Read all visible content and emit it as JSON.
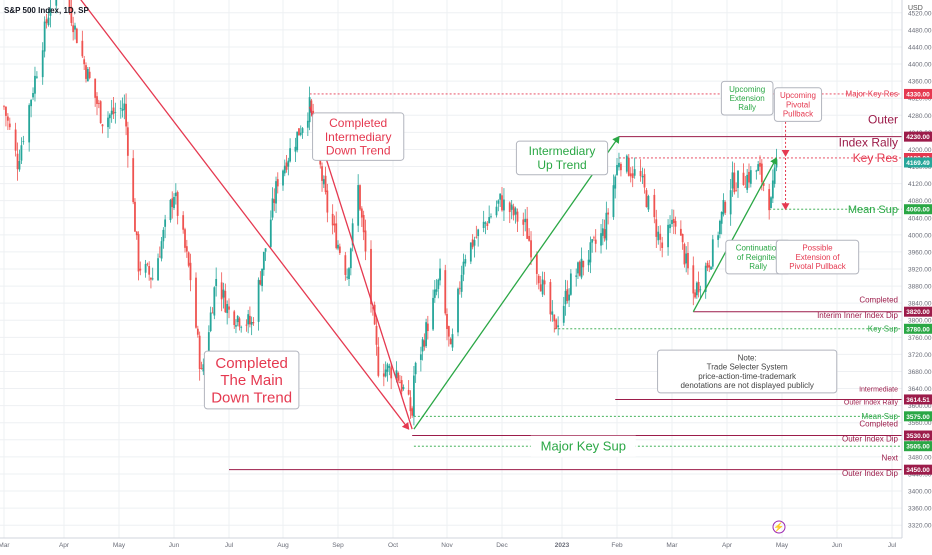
{
  "header": {
    "symbol_title": "S&P 500 Index, 1D, SP"
  },
  "currency_label": "USD",
  "logo_glyph": "⚡",
  "colors": {
    "red": "#e53950",
    "green": "#2aa745",
    "crimson": "#9c1c4a",
    "bull": "#26a69a",
    "bear": "#ef5350",
    "text_red": "#e53950",
    "text_green": "#2aa745",
    "grid": "#eef0f3"
  },
  "chart_data": {
    "type": "candlestick",
    "y_range": [
      3290,
      4550
    ],
    "y_ticks": [
      3320,
      3360,
      3400,
      3440,
      3480,
      3520,
      3560,
      3600,
      3640,
      3680,
      3720,
      3760,
      3800,
      3840,
      3880,
      3920,
      3960,
      4000,
      4040,
      4080,
      4120,
      4160,
      4200,
      4240,
      4280,
      4320,
      4360,
      4400,
      4440,
      4480,
      4520
    ],
    "x_ticks": [
      {
        "label": "Mar",
        "date": "2022-03-01"
      },
      {
        "label": "Apr",
        "date": "2022-04-01"
      },
      {
        "label": "May",
        "date": "2022-05-01"
      },
      {
        "label": "Jun",
        "date": "2022-06-01"
      },
      {
        "label": "Jul",
        "date": "2022-07-01"
      },
      {
        "label": "Aug",
        "date": "2022-08-01"
      },
      {
        "label": "Sep",
        "date": "2022-09-01"
      },
      {
        "label": "Oct",
        "date": "2022-10-01"
      },
      {
        "label": "Nov",
        "date": "2022-11-01"
      },
      {
        "label": "Dec",
        "date": "2022-12-01"
      },
      {
        "label": "2023",
        "date": "2023-01-01"
      },
      {
        "label": "Feb",
        "date": "2023-02-01"
      },
      {
        "label": "Mar",
        "date": "2023-03-01"
      },
      {
        "label": "Apr",
        "date": "2023-04-01"
      },
      {
        "label": "May",
        "date": "2023-05-01"
      },
      {
        "label": "Jun",
        "date": "2023-06-01"
      },
      {
        "label": "Jul",
        "date": "2023-07-01"
      }
    ],
    "price_anchors": [
      [
        "2022-03-01",
        4300
      ],
      [
        "2022-03-08",
        4170
      ],
      [
        "2022-03-29",
        4630
      ],
      [
        "2022-04-12",
        4400
      ],
      [
        "2022-04-22",
        4270
      ],
      [
        "2022-05-04",
        4300
      ],
      [
        "2022-05-12",
        3930
      ],
      [
        "2022-05-20",
        3900
      ],
      [
        "2022-06-01",
        4100
      ],
      [
        "2022-06-10",
        3900
      ],
      [
        "2022-06-16",
        3670
      ],
      [
        "2022-06-24",
        3900
      ],
      [
        "2022-07-01",
        3820
      ],
      [
        "2022-07-14",
        3790
      ],
      [
        "2022-07-29",
        4130
      ],
      [
        "2022-08-16",
        4300
      ],
      [
        "2022-08-26",
        4060
      ],
      [
        "2022-09-06",
        3910
      ],
      [
        "2022-09-12",
        4110
      ],
      [
        "2022-09-23",
        3690
      ],
      [
        "2022-10-03",
        3680
      ],
      [
        "2022-10-12",
        3580
      ],
      [
        "2022-10-13",
        3670
      ],
      [
        "2022-10-28",
        3900
      ],
      [
        "2022-11-03",
        3720
      ],
      [
        "2022-11-10",
        3950
      ],
      [
        "2022-11-30",
        4080
      ],
      [
        "2022-12-13",
        4020
      ],
      [
        "2022-12-28",
        3780
      ],
      [
        "2023-01-06",
        3890
      ],
      [
        "2023-01-25",
        4010
      ],
      [
        "2023-02-02",
        4180
      ],
      [
        "2023-02-13",
        4130
      ],
      [
        "2023-02-24",
        3970
      ],
      [
        "2023-03-03",
        4040
      ],
      [
        "2023-03-13",
        3860
      ],
      [
        "2023-03-23",
        3950
      ],
      [
        "2023-04-03",
        4120
      ],
      [
        "2023-04-14",
        4140
      ],
      [
        "2023-04-18",
        4155
      ],
      [
        "2023-04-25",
        4070
      ],
      [
        "2023-04-28",
        4169
      ]
    ],
    "last_price": 4169.49,
    "price_labels": [
      {
        "value": 4330.0,
        "text": "4330.00",
        "color": "red"
      },
      {
        "value": 4230.0,
        "text": "4230.00",
        "color": "crimson"
      },
      {
        "value": 4180.0,
        "text": "4180.00",
        "color": "red"
      },
      {
        "value": 4169.49,
        "text": "4169.49",
        "color": "bull"
      },
      {
        "value": 4060.0,
        "text": "4060.00",
        "color": "green"
      },
      {
        "value": 3820.0,
        "text": "3820.00",
        "color": "crimson"
      },
      {
        "value": 3780.0,
        "text": "3780.00",
        "color": "green"
      },
      {
        "value": 3614.51,
        "text": "3614.51",
        "color": "crimson"
      },
      {
        "value": 3575.0,
        "text": "3575.00",
        "color": "green"
      },
      {
        "value": 3530.0,
        "text": "3530.00",
        "color": "crimson"
      },
      {
        "value": 3505.0,
        "text": "3505.00",
        "color": "green"
      },
      {
        "value": 3450.0,
        "text": "3450.00",
        "color": "crimson"
      }
    ],
    "levels": [
      {
        "name": "Major Key Res",
        "value": 4330,
        "style": "dotted",
        "color": "red",
        "from": "2022-08-16",
        "label": [
          "Major Key Res"
        ],
        "label_size": 8
      },
      {
        "name": "Outer Index Rally",
        "value": 4230,
        "style": "solid",
        "color": "crimson",
        "from": "2023-02-02",
        "label": [
          "Outer",
          "Index Rally"
        ],
        "label_size": 12
      },
      {
        "name": "Key Res",
        "value": 4180,
        "style": "dotted",
        "color": "red",
        "from": "2023-02-02",
        "label": [
          "Key Res"
        ],
        "label_size": 12
      },
      {
        "name": "Mean Sup",
        "value": 4060,
        "style": "dotted",
        "color": "green",
        "from": "2023-04-24",
        "label": [
          "Mean Sup"
        ],
        "label_size": 11
      },
      {
        "name": "Completed Interim Inner Index Dip",
        "value": 3820,
        "style": "solid",
        "color": "crimson",
        "from": "2023-03-13",
        "label": [
          "Completed",
          "Interim Inner Index Dip"
        ],
        "label_size": 8
      },
      {
        "name": "Key Sup",
        "value": 3780,
        "style": "dotted",
        "color": "green",
        "from": "2022-12-28",
        "label": [
          "Key Sup"
        ],
        "label_size": 8
      },
      {
        "name": "Intermediate Outer Index Rally",
        "value": 3614.51,
        "style": "solid",
        "color": "crimson",
        "from": "2023-01-31",
        "label": [
          "Intermediate",
          "Outer Index Rally"
        ],
        "label_size": 7
      },
      {
        "name": "Mean Sup 3575",
        "value": 3575,
        "style": "dotted",
        "color": "green",
        "from": "2022-10-13",
        "label": [
          "Mean Sup"
        ],
        "label_size": 8
      },
      {
        "name": "Completed Outer Index Dip",
        "value": 3530,
        "style": "solid",
        "color": "crimson",
        "from": "2022-10-12",
        "label": [
          "Completed",
          "Outer Index Dip"
        ],
        "label_size": 8
      },
      {
        "name": "Major Key Sup",
        "value": 3505,
        "style": "dotted",
        "color": "green",
        "from": "2022-10-13",
        "label": [],
        "label_size": 8
      },
      {
        "name": "Next Outer Index Dip",
        "value": 3450,
        "style": "solid",
        "color": "crimson",
        "from": "2022-07-01",
        "label": [
          "Next",
          "Outer Index Dip"
        ],
        "label_size": 8
      }
    ],
    "trendlines": [
      {
        "name": "main-down-trend-line",
        "from": [
          "2022-03-29",
          4620
        ],
        "to": [
          "2022-10-10",
          3545
        ],
        "color": "red",
        "arrow": true
      },
      {
        "name": "intermediary-down-trend-line",
        "from": [
          "2022-08-16",
          4300
        ],
        "to": [
          "2022-10-12",
          3545
        ],
        "color": "red",
        "arrow": false
      },
      {
        "name": "intermediate-up-trend-line",
        "from": [
          "2022-10-13",
          3545
        ],
        "to": [
          "2023-02-02",
          4230
        ],
        "color": "green",
        "arrow": true
      },
      {
        "name": "reignited-rally-line",
        "from": [
          "2023-03-13",
          3820
        ],
        "to": [
          "2023-04-28",
          4180
        ],
        "color": "green",
        "arrow": true
      }
    ],
    "arrows": [
      {
        "name": "upcoming-pivotal-pullback-arrow",
        "x": "2023-05-03",
        "from": 4330,
        "to": 4185,
        "color": "red"
      },
      {
        "name": "possible-extension-pullback-arrow",
        "x": "2023-05-03",
        "from": 4180,
        "to": 4060,
        "color": "red"
      }
    ],
    "annotations": [
      {
        "name": "completed-main-down-trend",
        "lines": [
          "Completed",
          "The Main",
          "Down Trend"
        ],
        "color": "red",
        "box": true,
        "size": 15,
        "date": "2022-07-14",
        "price": 3660
      },
      {
        "name": "completed-intermediary-down-trend",
        "lines": [
          "Completed",
          "Intermediary",
          "Down Trend"
        ],
        "color": "red",
        "box": true,
        "size": 12,
        "date": "2022-09-12",
        "price": 4230
      },
      {
        "name": "intermediary-up-trend",
        "lines": [
          "Intermediary",
          "Up Trend"
        ],
        "color": "green",
        "box": true,
        "size": 12,
        "date": "2023-01-01",
        "price": 4180
      },
      {
        "name": "major-key-sup-label",
        "lines": [
          "Major Key Sup"
        ],
        "color": "green",
        "box": false,
        "size": 13,
        "date": "2023-01-13",
        "price": 3505
      },
      {
        "name": "upcoming-extension-rally",
        "lines": [
          "Upcoming",
          "Extension",
          "Rally"
        ],
        "color": "green",
        "box": true,
        "size": 8,
        "date": "2023-04-12",
        "price": 4320
      },
      {
        "name": "upcoming-pivotal-pullback",
        "lines": [
          "Upcoming",
          "Pivotal",
          "Pullback"
        ],
        "color": "red",
        "box": true,
        "size": 8,
        "date": "2023-05-10",
        "price": 4305
      },
      {
        "name": "continuation-reignited-rally",
        "lines": [
          "Continuation",
          "of Reignited",
          "Rally"
        ],
        "color": "green",
        "box": true,
        "size": 8,
        "date": "2023-04-18",
        "price": 3948
      },
      {
        "name": "possible-extension-pullback",
        "lines": [
          "Possible",
          "Extension of",
          "Pivotal Pullback"
        ],
        "color": "red",
        "box": true,
        "size": 8,
        "date": "2023-05-21",
        "price": 3948
      },
      {
        "name": "note-box",
        "lines": [
          "Note:",
          "Trade Selecter System",
          "price-action-time-trademark",
          "denotations are not displayed publicly"
        ],
        "color": "dark",
        "box": true,
        "size": 8,
        "date": "2023-04-12",
        "price": 3680
      }
    ]
  }
}
